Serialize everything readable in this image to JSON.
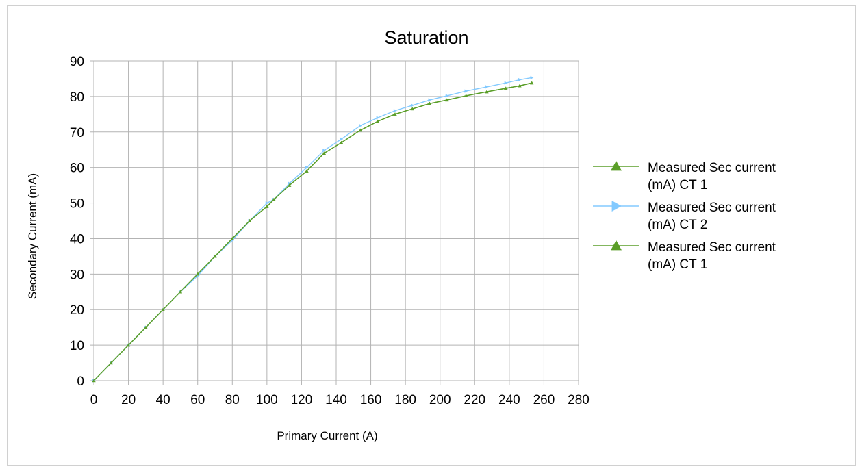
{
  "chart_data": {
    "type": "line",
    "title": "Saturation",
    "xlabel": "Primary Current (A)",
    "ylabel": "Secondary Current (mA)",
    "xlim": [
      0,
      280
    ],
    "ylim": [
      0,
      90
    ],
    "xticks": [
      0,
      20,
      40,
      60,
      80,
      100,
      120,
      140,
      160,
      180,
      200,
      220,
      240,
      260,
      280
    ],
    "yticks": [
      0,
      10,
      20,
      30,
      40,
      50,
      60,
      70,
      80,
      90
    ],
    "grid": true,
    "legend_position": "right",
    "series": [
      {
        "name": "Measured Sec current (mA) CT 1",
        "name_lines": [
          "Measured Sec current",
          "(mA) CT 1"
        ],
        "color": "#5a9e28",
        "marker": "triangle-up",
        "x": [
          0,
          10,
          20,
          30,
          40,
          50,
          60,
          70,
          80,
          90,
          100,
          104,
          113,
          123,
          133,
          143,
          154,
          164,
          174,
          184,
          194,
          204,
          215,
          227,
          238,
          246,
          253
        ],
        "y": [
          0,
          5,
          10,
          15,
          20,
          25,
          30,
          35,
          40,
          45,
          49,
          51,
          55,
          59,
          64,
          67,
          70.5,
          73,
          75,
          76.5,
          78,
          79,
          80.2,
          81.3,
          82.3,
          83,
          83.8
        ]
      },
      {
        "name": "Measured Sec current (mA) CT 2",
        "name_lines": [
          "Measured Sec current",
          "(mA) CT 2"
        ],
        "color": "#83caff",
        "marker": "triangle-right",
        "x": [
          0,
          10,
          20,
          30,
          40,
          50,
          60,
          70,
          80,
          90,
          100,
          104,
          113,
          123,
          133,
          143,
          154,
          164,
          174,
          184,
          194,
          204,
          215,
          227,
          238,
          246,
          253
        ],
        "y": [
          0,
          5,
          10,
          15,
          20,
          25,
          29.5,
          35,
          39.5,
          45,
          50,
          51,
          55.5,
          60,
          64.8,
          68,
          71.8,
          74,
          76,
          77.5,
          79,
          80.2,
          81.5,
          82.7,
          83.8,
          84.7,
          85.3
        ]
      },
      {
        "name": "Measured Sec current (mA) CT 1",
        "name_lines": [
          "Measured Sec current",
          "(mA) CT 1"
        ],
        "color": "#5a9e28",
        "marker": "triangle-up",
        "x": [
          0,
          10,
          20,
          30,
          40,
          50,
          60,
          70,
          80,
          90,
          100,
          104,
          113,
          123,
          133,
          143,
          154,
          164,
          174,
          184,
          194,
          204,
          215,
          227,
          238,
          246,
          253
        ],
        "y": [
          0,
          5,
          10,
          15,
          20,
          25,
          30,
          35,
          40,
          45,
          49,
          51,
          55,
          59,
          64,
          67,
          70.5,
          73,
          75,
          76.5,
          78,
          79,
          80.2,
          81.3,
          82.3,
          83,
          83.8
        ]
      }
    ]
  }
}
